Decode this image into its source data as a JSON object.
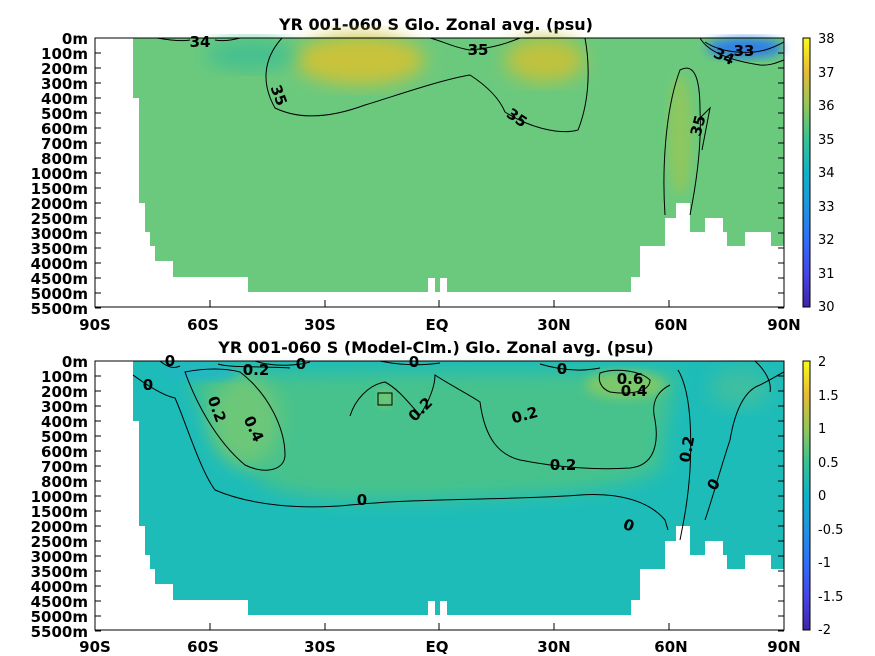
{
  "chart_data": [
    {
      "type": "heatmap",
      "title": "YR 001-060 S Glo. Zonal avg. (psu)",
      "x_tick_labels": [
        "90S",
        "60S",
        "30S",
        "EQ",
        "30N",
        "60N",
        "90N"
      ],
      "y_tick_labels": [
        "0m",
        "100m",
        "200m",
        "300m",
        "400m",
        "500m",
        "600m",
        "700m",
        "800m",
        "1000m",
        "1500m",
        "2000m",
        "2500m",
        "3000m",
        "3500m",
        "4000m",
        "4500m",
        "5000m",
        "5500m"
      ],
      "xlim": [
        -90,
        90
      ],
      "colorbar": {
        "min": 30,
        "max": 38,
        "tick_labels": [
          "38",
          "37",
          "36",
          "35",
          "34",
          "33",
          "32",
          "31",
          "30"
        ]
      },
      "contours": [
        {
          "label": "34",
          "value": 34
        },
        {
          "label": "35",
          "value": 35
        },
        {
          "label": "35",
          "value": 35
        },
        {
          "label": "35",
          "value": 35
        },
        {
          "label": "35",
          "value": 35
        },
        {
          "label": "33",
          "value": 33
        },
        {
          "label": "34",
          "value": 34
        }
      ],
      "grid": false
    },
    {
      "type": "heatmap",
      "title": "YR 001-060 S (Model-Clm.) Glo. Zonal avg. (psu)",
      "x_tick_labels": [
        "90S",
        "60S",
        "30S",
        "EQ",
        "30N",
        "60N",
        "90N"
      ],
      "y_tick_labels": [
        "0m",
        "100m",
        "200m",
        "300m",
        "400m",
        "500m",
        "600m",
        "700m",
        "800m",
        "1000m",
        "1500m",
        "2000m",
        "2500m",
        "3000m",
        "3500m",
        "4000m",
        "4500m",
        "5000m",
        "5500m"
      ],
      "xlim": [
        -90,
        90
      ],
      "colorbar": {
        "min": -2,
        "max": 2,
        "tick_labels": [
          "2",
          "1.5",
          "1",
          "0.5",
          "0",
          "-0.5",
          "-1",
          "-1.5",
          "-2"
        ]
      },
      "contours": [
        {
          "label": "0",
          "value": 0
        },
        {
          "label": "0.2",
          "value": 0.2
        },
        {
          "label": "0",
          "value": 0
        },
        {
          "label": "0",
          "value": 0
        },
        {
          "label": "0",
          "value": 0
        },
        {
          "label": "0",
          "value": 0
        },
        {
          "label": "0.2",
          "value": 0.2
        },
        {
          "label": "0.4",
          "value": 0.4
        },
        {
          "label": "0.2",
          "value": 0.2
        },
        {
          "label": "0.2",
          "value": 0.2
        },
        {
          "label": "0.2",
          "value": 0.2
        },
        {
          "label": "0.6",
          "value": 0.6
        },
        {
          "label": "0.4",
          "value": 0.4
        },
        {
          "label": "0.2",
          "value": 0.2
        },
        {
          "label": "0",
          "value": 0
        },
        {
          "label": "0",
          "value": 0
        },
        {
          "label": "0",
          "value": 0
        }
      ],
      "grid": false
    }
  ]
}
